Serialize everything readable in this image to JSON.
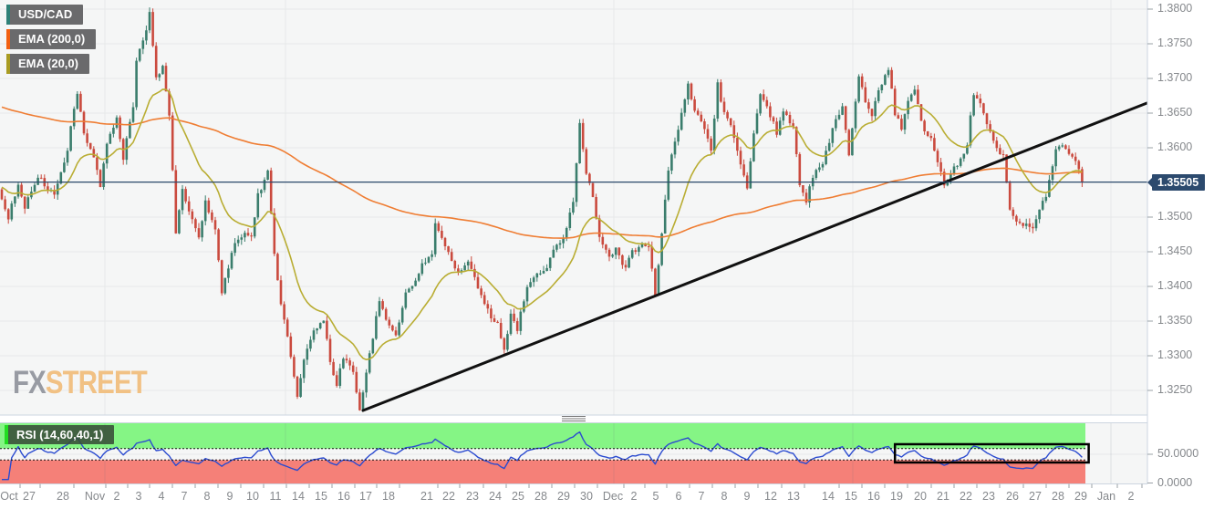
{
  "app": {
    "symbol": "USD/CAD",
    "provider": "FXStreet"
  },
  "legend": {
    "items": [
      {
        "label": "USD/CAD",
        "accent": "#2f8077"
      },
      {
        "label": "EMA (200,0)",
        "accent": "#f26011"
      },
      {
        "label": "EMA (20,0)",
        "accent": "#a89b22"
      }
    ]
  },
  "watermark": {
    "part1": "FX",
    "part2": "STREET",
    "part1_color": "#989ba3",
    "part2_color": "#f1c184"
  },
  "price_axis": {
    "tick_labels": [
      "1.3800",
      "1.3750",
      "1.3700",
      "1.3650",
      "1.3600",
      "1.3500",
      "1.3450",
      "1.3400",
      "1.3350",
      "1.3300",
      "1.3250"
    ],
    "tick_values": [
      1.38,
      1.375,
      1.37,
      1.365,
      1.36,
      1.35,
      1.345,
      1.34,
      1.335,
      1.33,
      1.325
    ],
    "grid_values": [
      1.38,
      1.375,
      1.37,
      1.365,
      1.36,
      1.355,
      1.35,
      1.345,
      1.34,
      1.335,
      1.33,
      1.325
    ],
    "current_price_label": "1.35505"
  },
  "time_axis": {
    "ticks": [
      {
        "t": "Oct",
        "x": 10
      },
      {
        "t": "27",
        "x": 32
      },
      {
        "t": "28",
        "x": 69
      },
      {
        "t": "Nov",
        "x": 104
      },
      {
        "t": "2",
        "x": 128
      },
      {
        "t": "3",
        "x": 152
      },
      {
        "t": "4",
        "x": 177
      },
      {
        "t": "7",
        "x": 202
      },
      {
        "t": "8",
        "x": 227
      },
      {
        "t": "9",
        "x": 252
      },
      {
        "t": "10",
        "x": 277
      },
      {
        "t": "11",
        "x": 302
      },
      {
        "t": "14",
        "x": 327
      },
      {
        "t": "15",
        "x": 352
      },
      {
        "t": "16",
        "x": 377
      },
      {
        "t": "17",
        "x": 401
      },
      {
        "t": "18",
        "x": 426
      },
      {
        "t": "21",
        "x": 468
      },
      {
        "t": "22",
        "x": 492
      },
      {
        "t": "23",
        "x": 518
      },
      {
        "t": "24",
        "x": 543
      },
      {
        "t": "25",
        "x": 568
      },
      {
        "t": "28",
        "x": 593
      },
      {
        "t": "29",
        "x": 618
      },
      {
        "t": "30",
        "x": 643
      },
      {
        "t": "Dec",
        "x": 672
      },
      {
        "t": "2",
        "x": 695
      },
      {
        "t": "5",
        "x": 719
      },
      {
        "t": "6",
        "x": 744
      },
      {
        "t": "7",
        "x": 769
      },
      {
        "t": "8",
        "x": 794
      },
      {
        "t": "9",
        "x": 819
      },
      {
        "t": "12",
        "x": 845
      },
      {
        "t": "13",
        "x": 870
      },
      {
        "t": "14",
        "x": 908
      },
      {
        "t": "15",
        "x": 933
      },
      {
        "t": "16",
        "x": 958
      },
      {
        "t": "19",
        "x": 983
      },
      {
        "t": "20",
        "x": 1009
      },
      {
        "t": "21",
        "x": 1034
      },
      {
        "t": "22",
        "x": 1059
      },
      {
        "t": "23",
        "x": 1084
      },
      {
        "t": "26",
        "x": 1110
      },
      {
        "t": "27",
        "x": 1135
      },
      {
        "t": "28",
        "x": 1160
      },
      {
        "t": "29",
        "x": 1185
      },
      {
        "t": "Jan",
        "x": 1213
      },
      {
        "t": "2",
        "x": 1240
      }
    ]
  },
  "rsi_panel": {
    "label": "RSI (14,60,40,1)",
    "accent": "#22dd22",
    "upper_band": 60,
    "lower_band": 40,
    "ticks": [
      {
        "label": "50.0000",
        "value": 50
      },
      {
        "label": "0.0000",
        "value": 0
      }
    ]
  },
  "colors": {
    "pane_bg": "#f5f6f6",
    "grid": "#e6e8e9",
    "border": "#ccd5e0",
    "tick": "#9aa0a6",
    "candle_up": "#3a7d6c",
    "candle_down": "#ca4a3e",
    "ema200": "#ef7d33",
    "ema20": "#b9ad33",
    "price_line": "#2d4a6d",
    "trendline": "#111111",
    "rsi_line": "#2b4bd0",
    "rsi_upper_zone": "#85f585",
    "rsi_lower_zone": "#f58078",
    "rsi_box": "#000000"
  },
  "chart_data": {
    "type": "candlestick",
    "symbol": "USD/CAD",
    "timeframe": "hourly",
    "ylim": [
      1.325,
      1.38
    ],
    "num_candles": 330,
    "last_price": 1.35505,
    "price_path": [
      [
        0,
        1.354
      ],
      [
        3,
        1.35
      ],
      [
        6,
        1.355
      ],
      [
        8,
        1.3515
      ],
      [
        12,
        1.356
      ],
      [
        15,
        1.354
      ],
      [
        17,
        1.353
      ],
      [
        21,
        1.36
      ],
      [
        24,
        1.368
      ],
      [
        26,
        1.362
      ],
      [
        29,
        1.359
      ],
      [
        31,
        1.354
      ],
      [
        33,
        1.361
      ],
      [
        36,
        1.364
      ],
      [
        38,
        1.3585
      ],
      [
        41,
        1.366
      ],
      [
        42,
        1.373
      ],
      [
        45,
        1.377
      ],
      [
        46,
        1.3797
      ],
      [
        48,
        1.37
      ],
      [
        50,
        1.372
      ],
      [
        52,
        1.365
      ],
      [
        54,
        1.348
      ],
      [
        56,
        1.3545
      ],
      [
        58,
        1.3505
      ],
      [
        61,
        1.347
      ],
      [
        63,
        1.352
      ],
      [
        66,
        1.348
      ],
      [
        68,
        1.339
      ],
      [
        71,
        1.345
      ],
      [
        74,
        1.3475
      ],
      [
        77,
        1.347
      ],
      [
        79,
        1.353
      ],
      [
        82,
        1.357
      ],
      [
        84,
        1.345
      ],
      [
        86,
        1.3375
      ],
      [
        88,
        1.333
      ],
      [
        91,
        1.3245
      ],
      [
        93,
        1.329
      ],
      [
        96,
        1.334
      ],
      [
        99,
        1.335
      ],
      [
        101,
        1.329
      ],
      [
        103,
        1.3255
      ],
      [
        105,
        1.33
      ],
      [
        108,
        1.328
      ],
      [
        110,
        1.322
      ],
      [
        113,
        1.33
      ],
      [
        116,
        1.338
      ],
      [
        118,
        1.335
      ],
      [
        121,
        1.333
      ],
      [
        124,
        1.3395
      ],
      [
        127,
        1.3405
      ],
      [
        129,
        1.343
      ],
      [
        132,
        1.3445
      ],
      [
        133,
        1.349
      ],
      [
        136,
        1.346
      ],
      [
        138,
        1.3435
      ],
      [
        141,
        1.342
      ],
      [
        143,
        1.344
      ],
      [
        146,
        1.34
      ],
      [
        149,
        1.3365
      ],
      [
        152,
        1.3345
      ],
      [
        154,
        1.331
      ],
      [
        156,
        1.336
      ],
      [
        158,
        1.334
      ],
      [
        161,
        1.34
      ],
      [
        164,
        1.342
      ],
      [
        167,
        1.3425
      ],
      [
        169,
        1.345
      ],
      [
        172,
        1.347
      ],
      [
        175,
        1.352
      ],
      [
        177,
        1.364
      ],
      [
        179,
        1.356
      ],
      [
        181,
        1.353
      ],
      [
        183,
        1.347
      ],
      [
        186,
        1.344
      ],
      [
        188,
        1.3455
      ],
      [
        191,
        1.3425
      ],
      [
        193,
        1.345
      ],
      [
        196,
        1.346
      ],
      [
        198,
        1.346
      ],
      [
        200,
        1.3385
      ],
      [
        202,
        1.348
      ],
      [
        204,
        1.357
      ],
      [
        207,
        1.363
      ],
      [
        210,
        1.369
      ],
      [
        212,
        1.365
      ],
      [
        214,
        1.364
      ],
      [
        217,
        1.36
      ],
      [
        219,
        1.369
      ],
      [
        221,
        1.365
      ],
      [
        223,
        1.363
      ],
      [
        226,
        1.358
      ],
      [
        228,
        1.354
      ],
      [
        230,
        1.362
      ],
      [
        232,
        1.368
      ],
      [
        234,
        1.366
      ],
      [
        237,
        1.362
      ],
      [
        239,
        1.365
      ],
      [
        242,
        1.363
      ],
      [
        244,
        1.355
      ],
      [
        246,
        1.352
      ],
      [
        248,
        1.356
      ],
      [
        251,
        1.358
      ],
      [
        253,
        1.361
      ],
      [
        255,
        1.364
      ],
      [
        257,
        1.366
      ],
      [
        259,
        1.359
      ],
      [
        262,
        1.37
      ],
      [
        264,
        1.367
      ],
      [
        266,
        1.365
      ],
      [
        268,
        1.368
      ],
      [
        271,
        1.3715
      ],
      [
        273,
        1.365
      ],
      [
        275,
        1.363
      ],
      [
        277,
        1.367
      ],
      [
        279,
        1.368
      ],
      [
        282,
        1.3625
      ],
      [
        284,
        1.361
      ],
      [
        286,
        1.358
      ],
      [
        288,
        1.3545
      ],
      [
        291,
        1.357
      ],
      [
        293,
        1.3585
      ],
      [
        295,
        1.3605
      ],
      [
        297,
        1.368
      ],
      [
        299,
        1.366
      ],
      [
        302,
        1.362
      ],
      [
        304,
        1.36
      ],
      [
        306,
        1.359
      ],
      [
        308,
        1.351
      ],
      [
        311,
        1.349
      ],
      [
        313,
        1.349
      ],
      [
        315,
        1.348
      ],
      [
        317,
        1.351
      ],
      [
        319,
        1.353
      ],
      [
        322,
        1.36
      ],
      [
        324,
        1.3605
      ],
      [
        326,
        1.3595
      ],
      [
        328,
        1.358
      ],
      [
        330,
        1.35505
      ]
    ],
    "overlays": [
      {
        "name": "EMA (200,0)",
        "type": "ema",
        "period": 200,
        "initial": 1.366,
        "color": "#ef7d33"
      },
      {
        "name": "EMA (20,0)",
        "type": "ema",
        "period": 20,
        "initial": 1.3545,
        "color": "#b9ad33"
      }
    ],
    "drawings": {
      "trendline": {
        "i1": 110,
        "p1": 1.3221,
        "i2": 349,
        "p2": 1.3665,
        "width": 3
      },
      "rsi_box": {
        "i1": 272,
        "i2": 331,
        "v1": 67.5,
        "v2": 35.7
      }
    },
    "indicator": {
      "name": "RSI",
      "params": [
        14,
        60,
        40,
        1
      ],
      "upper": 60,
      "lower": 40,
      "range": [
        0,
        104
      ]
    }
  }
}
